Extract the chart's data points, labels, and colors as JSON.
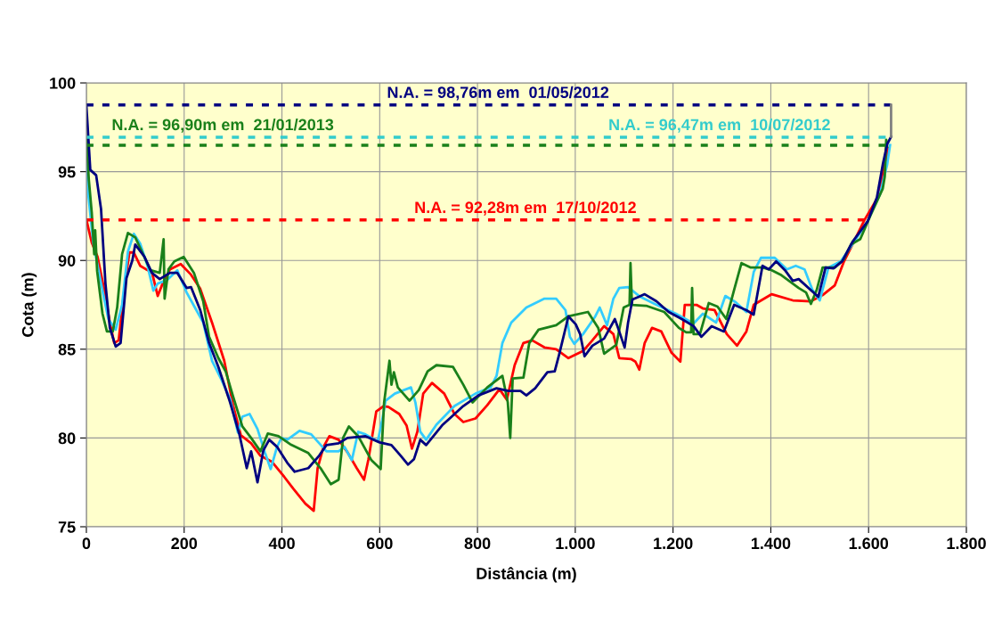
{
  "chart_data": {
    "type": "line",
    "xlabel": "Distância (m)",
    "ylabel": "Cota (m)",
    "xlim": [
      0,
      1800
    ],
    "ylim": [
      75,
      100
    ],
    "xticks": [
      0,
      200,
      400,
      600,
      800,
      {
        "value": 1000,
        "label": "1.000"
      },
      {
        "value": 1200,
        "label": "1.200"
      },
      {
        "value": 1400,
        "label": "1.400"
      },
      {
        "value": 1600,
        "label": "1.600"
      },
      {
        "value": 1800,
        "label": "1.800"
      }
    ],
    "yticks": [
      75,
      80,
      85,
      90,
      95,
      100
    ],
    "grid": true,
    "marker": "none",
    "series": [
      {
        "color": "#ff0000",
        "line_style": "solid",
        "x": [
          0,
          11,
          23,
          36,
          48,
          57,
          66,
          79,
          88,
          97,
          110,
          122,
          134,
          146,
          156,
          171,
          193,
          214,
          233,
          257,
          282,
          300,
          316,
          337,
          356,
          380,
          405,
          423,
          448,
          465,
          473,
          485,
          497,
          516,
          534,
          553,
          568,
          577,
          593,
          608,
          618,
          640,
          655,
          666,
          677,
          689,
          707,
          732,
          753,
          771,
          796,
          820,
          845,
          860,
          876,
          894,
          912,
          937,
          961,
          986,
          1016,
          1035,
          1059,
          1078,
          1090,
          1114,
          1123,
          1131,
          1142,
          1157,
          1176,
          1197,
          1215,
          1224,
          1248,
          1261,
          1285,
          1310,
          1331,
          1350,
          1365,
          1402,
          1445,
          1482,
          1506,
          1531,
          1549,
          1567,
          1592,
          1620,
          1640
        ],
        "values": [
          92.3,
          91.0,
          90.2,
          88.4,
          86.5,
          85.35,
          85.5,
          88.7,
          90.45,
          90.45,
          89.7,
          89.5,
          89.35,
          88.0,
          88.7,
          89.5,
          89.8,
          89.2,
          88.4,
          86.5,
          84.35,
          81.85,
          80.15,
          79.7,
          79.0,
          78.65,
          77.8,
          77.15,
          76.3,
          75.9,
          78.3,
          79.5,
          80.1,
          79.9,
          79.2,
          78.3,
          77.65,
          78.8,
          81.5,
          81.8,
          81.75,
          81.35,
          80.7,
          79.4,
          80.35,
          82.5,
          83.1,
          82.5,
          81.35,
          80.9,
          81.1,
          81.85,
          82.75,
          82.15,
          84.1,
          85.35,
          85.5,
          85.1,
          85.0,
          84.5,
          84.9,
          85.5,
          86.3,
          85.85,
          84.5,
          84.45,
          84.3,
          83.85,
          85.35,
          86.2,
          86.0,
          84.8,
          84.3,
          87.5,
          87.5,
          87.3,
          87.2,
          85.85,
          85.2,
          86.0,
          87.5,
          88.1,
          87.75,
          87.7,
          88.05,
          88.6,
          89.9,
          90.9,
          92.3,
          93.6,
          96.3
        ]
      },
      {
        "color": "#33ccff",
        "line_style": "solid",
        "x": [
          0,
          4,
          14,
          30,
          45,
          60,
          73,
          85,
          97,
          110,
          125,
          137,
          146,
          165,
          186,
          205,
          223,
          239,
          257,
          276,
          294,
          310,
          319,
          334,
          350,
          365,
          377,
          390,
          399,
          411,
          436,
          460,
          491,
          516,
          528,
          543,
          556,
          571,
          596,
          605,
          612,
          631,
          664,
          673,
          683,
          695,
          716,
          753,
          796,
          827,
          839,
          851,
          869,
          900,
          937,
          961,
          980,
          989,
          998,
          1016,
          1041,
          1050,
          1065,
          1078,
          1090,
          1108,
          1133,
          1170,
          1206,
          1242,
          1261,
          1288,
          1307,
          1328,
          1350,
          1365,
          1380,
          1408,
          1433,
          1451,
          1469,
          1485,
          1500,
          1518,
          1543,
          1567,
          1598,
          1623,
          1638,
          1644
        ],
        "values": [
          96.9,
          93.7,
          91.0,
          88.7,
          86.7,
          86.1,
          87.5,
          90.5,
          91.5,
          90.95,
          89.7,
          88.3,
          88.7,
          88.9,
          89.45,
          88.2,
          87.3,
          86.5,
          84.35,
          83.3,
          82.2,
          80.3,
          81.2,
          81.35,
          80.5,
          79.2,
          78.25,
          79.5,
          80.0,
          79.9,
          80.4,
          80.2,
          79.25,
          79.25,
          79.5,
          78.75,
          80.35,
          80.2,
          79.8,
          81.0,
          82.1,
          82.5,
          82.85,
          82.0,
          80.35,
          79.9,
          80.75,
          81.8,
          82.5,
          82.85,
          83.5,
          85.35,
          86.5,
          87.35,
          87.85,
          87.85,
          87.2,
          85.7,
          85.3,
          85.85,
          86.85,
          87.35,
          86.35,
          87.85,
          88.45,
          88.5,
          87.95,
          87.45,
          87.0,
          86.45,
          87.0,
          86.5,
          88.0,
          87.65,
          87.1,
          89.35,
          90.15,
          90.15,
          89.5,
          89.7,
          89.5,
          88.35,
          87.75,
          89.6,
          89.95,
          90.9,
          92.2,
          93.7,
          95.4,
          96.5
        ]
      },
      {
        "color": "#1a801a",
        "line_style": "solid",
        "x": [
          0,
          5,
          11,
          16,
          18,
          22,
          33,
          42,
          54,
          63,
          73,
          85,
          100,
          116,
          131,
          150,
          158,
          160,
          168,
          180,
          199,
          220,
          239,
          251,
          270,
          285,
          300,
          319,
          337,
          356,
          371,
          393,
          417,
          454,
          479,
          500,
          516,
          525,
          537,
          556,
          583,
          602,
          609,
          620,
          624,
          629,
          637,
          661,
          680,
          698,
          716,
          750,
          771,
          790,
          820,
          851,
          862,
          867,
          872,
          894,
          906,
          925,
          961,
          986,
          1026,
          1047,
          1059,
          1084,
          1099,
          1111,
          1113,
          1116,
          1145,
          1182,
          1212,
          1227,
          1237,
          1239,
          1242,
          1255,
          1273,
          1291,
          1309,
          1325,
          1340,
          1359,
          1383,
          1402,
          1420,
          1457,
          1472,
          1482,
          1494,
          1506,
          1531,
          1549,
          1564,
          1583,
          1604,
          1629,
          1633,
          1636,
          1638
        ],
        "values": [
          96.9,
          94.55,
          92.7,
          90.35,
          91.7,
          89.4,
          87.0,
          86.0,
          86.0,
          87.35,
          90.35,
          91.55,
          91.3,
          90.35,
          89.45,
          89.3,
          91.2,
          87.85,
          89.5,
          89.95,
          90.2,
          89.3,
          87.7,
          85.7,
          84.5,
          83.75,
          82.35,
          80.65,
          80.0,
          79.25,
          80.25,
          80.1,
          79.65,
          79.15,
          78.3,
          77.4,
          77.65,
          80.0,
          80.65,
          80.1,
          78.75,
          78.25,
          82.0,
          84.35,
          83.0,
          83.7,
          82.85,
          82.1,
          82.7,
          83.75,
          84.1,
          84.0,
          83.0,
          82.0,
          82.85,
          83.5,
          82.0,
          80.0,
          83.35,
          83.4,
          85.35,
          86.1,
          86.35,
          86.85,
          87.1,
          86.2,
          84.75,
          85.25,
          87.35,
          87.5,
          89.85,
          87.5,
          87.45,
          87.1,
          86.2,
          85.95,
          85.95,
          88.45,
          85.85,
          85.85,
          87.6,
          87.4,
          86.7,
          88.35,
          89.85,
          89.6,
          89.6,
          89.45,
          89.2,
          88.45,
          88.2,
          87.55,
          88.35,
          89.6,
          89.6,
          90.05,
          90.9,
          91.2,
          92.55,
          94.05,
          94.7,
          96.8,
          96.4
        ]
      },
      {
        "color": "#000080",
        "line_style": "solid",
        "x": [
          0,
          8,
          20,
          30,
          39,
          48,
          60,
          70,
          82,
          94,
          100,
          119,
          134,
          150,
          171,
          186,
          205,
          214,
          233,
          251,
          270,
          294,
          313,
          328,
          337,
          350,
          362,
          374,
          390,
          411,
          426,
          454,
          476,
          491,
          516,
          534,
          571,
          600,
          624,
          643,
          658,
          670,
          683,
          695,
          729,
          771,
          802,
          839,
          863,
          888,
          900,
          918,
          943,
          958,
          967,
          986,
          1001,
          1010,
          1019,
          1035,
          1059,
          1081,
          1090,
          1101,
          1108,
          1117,
          1130,
          1142,
          1166,
          1191,
          1218,
          1242,
          1258,
          1279,
          1304,
          1325,
          1350,
          1365,
          1383,
          1396,
          1411,
          1429,
          1445,
          1457,
          1497,
          1512,
          1528,
          1546,
          1567,
          1598,
          1617,
          1629,
          1638,
          1646
        ],
        "values": [
          98.73,
          95.1,
          94.8,
          92.9,
          88.7,
          86.2,
          85.15,
          85.35,
          89.0,
          90.0,
          90.9,
          90.2,
          89.3,
          88.95,
          89.3,
          89.3,
          88.45,
          88.5,
          87.2,
          85.35,
          84.0,
          82.0,
          80.2,
          78.3,
          79.25,
          77.5,
          79.3,
          79.9,
          79.5,
          78.6,
          78.1,
          78.3,
          79.0,
          79.6,
          79.7,
          80.0,
          80.1,
          79.75,
          79.6,
          79.0,
          78.5,
          78.8,
          79.9,
          79.6,
          80.75,
          81.8,
          82.4,
          82.8,
          82.65,
          82.65,
          82.4,
          82.8,
          83.7,
          83.75,
          84.7,
          86.85,
          86.4,
          85.85,
          84.6,
          85.2,
          85.6,
          86.7,
          86.0,
          85.1,
          86.5,
          87.8,
          87.95,
          88.1,
          87.7,
          87.1,
          86.7,
          86.3,
          85.7,
          86.3,
          86.0,
          87.5,
          87.2,
          86.95,
          89.7,
          89.5,
          89.95,
          89.45,
          88.85,
          88.95,
          87.95,
          89.6,
          89.55,
          89.95,
          91.05,
          92.2,
          93.55,
          95.4,
          96.55,
          96.97
        ]
      },
      {
        "color": "#000080",
        "line_style": "dashed",
        "x": [
          0,
          1646
        ],
        "values": [
          98.76,
          98.76
        ]
      },
      {
        "color": "#33cccc",
        "line_style": "dashed",
        "x": [
          0,
          1635
        ],
        "values": [
          96.94,
          96.94
        ]
      },
      {
        "color": "#1a801a",
        "line_style": "dashed",
        "x": [
          0,
          1635
        ],
        "values": [
          96.49,
          96.49
        ]
      },
      {
        "color": "#ff0000",
        "line_style": "dashed",
        "x": [
          0,
          1592
        ],
        "values": [
          92.28,
          92.28
        ]
      },
      {
        "color": "#808080",
        "line_style": "solid",
        "x": [
          1646,
          1646
        ],
        "values": [
          96.97,
          98.76
        ]
      }
    ],
    "annotations": [
      {
        "text": "N.A. = 98,76m em  01/05/2012",
        "x": 842,
        "y": 98.76
      },
      {
        "text": "N.A. = 96,90m em  21/01/2013",
        "x": 279,
        "y": 96.49
      },
      {
        "text": "N.A. = 96,47m em  10/07/2012",
        "x": 1295,
        "y": 96.94
      },
      {
        "text": "N.A. = 92,28m em  17/10/2012",
        "x": 898,
        "y": 92.28
      }
    ]
  }
}
